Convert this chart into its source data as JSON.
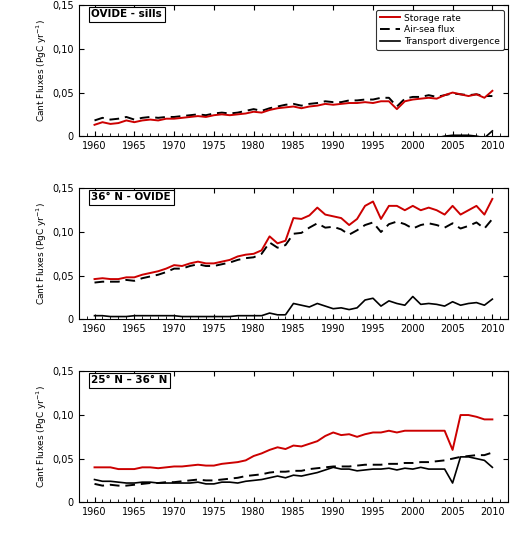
{
  "years": [
    1960,
    1961,
    1962,
    1963,
    1964,
    1965,
    1966,
    1967,
    1968,
    1969,
    1970,
    1971,
    1972,
    1973,
    1974,
    1975,
    1976,
    1977,
    1978,
    1979,
    1980,
    1981,
    1982,
    1983,
    1984,
    1985,
    1986,
    1987,
    1988,
    1989,
    1990,
    1991,
    1992,
    1993,
    1994,
    1995,
    1996,
    1997,
    1998,
    1999,
    2000,
    2001,
    2002,
    2003,
    2004,
    2005,
    2006,
    2007,
    2008,
    2009,
    2010
  ],
  "panel_a_storage": [
    0.013,
    0.016,
    0.014,
    0.015,
    0.018,
    0.016,
    0.018,
    0.019,
    0.018,
    0.02,
    0.02,
    0.021,
    0.022,
    0.023,
    0.022,
    0.024,
    0.025,
    0.024,
    0.025,
    0.026,
    0.028,
    0.027,
    0.03,
    0.032,
    0.033,
    0.034,
    0.032,
    0.034,
    0.035,
    0.037,
    0.036,
    0.037,
    0.038,
    0.038,
    0.039,
    0.038,
    0.04,
    0.04,
    0.031,
    0.04,
    0.042,
    0.043,
    0.044,
    0.043,
    0.047,
    0.05,
    0.048,
    0.046,
    0.048,
    0.044,
    0.052
  ],
  "panel_a_airsea": [
    0.018,
    0.021,
    0.019,
    0.02,
    0.022,
    0.019,
    0.021,
    0.022,
    0.021,
    0.022,
    0.022,
    0.023,
    0.024,
    0.025,
    0.024,
    0.026,
    0.027,
    0.026,
    0.027,
    0.029,
    0.031,
    0.029,
    0.032,
    0.034,
    0.036,
    0.037,
    0.035,
    0.037,
    0.038,
    0.04,
    0.039,
    0.039,
    0.041,
    0.041,
    0.042,
    0.042,
    0.044,
    0.044,
    0.034,
    0.043,
    0.045,
    0.045,
    0.047,
    0.045,
    0.047,
    0.049,
    0.048,
    0.047,
    0.048,
    0.046,
    0.046
  ],
  "panel_a_transport": [
    -0.005,
    -0.005,
    -0.005,
    -0.004,
    -0.004,
    -0.003,
    -0.003,
    -0.003,
    -0.003,
    -0.002,
    -0.002,
    -0.002,
    -0.002,
    -0.002,
    -0.002,
    -0.002,
    -0.002,
    -0.002,
    -0.002,
    -0.003,
    -0.003,
    -0.002,
    -0.002,
    -0.002,
    -0.003,
    -0.003,
    -0.003,
    -0.003,
    -0.003,
    -0.003,
    -0.003,
    -0.002,
    -0.003,
    -0.003,
    -0.003,
    -0.004,
    -0.004,
    -0.004,
    -0.003,
    -0.003,
    -0.003,
    -0.002,
    -0.003,
    -0.002,
    -0.0,
    0.001,
    0.001,
    0.001,
    -0.0,
    -0.002,
    0.006
  ],
  "panel_b_storage": [
    0.046,
    0.047,
    0.046,
    0.046,
    0.048,
    0.048,
    0.051,
    0.053,
    0.055,
    0.058,
    0.062,
    0.061,
    0.064,
    0.066,
    0.064,
    0.064,
    0.066,
    0.068,
    0.072,
    0.074,
    0.075,
    0.079,
    0.095,
    0.087,
    0.09,
    0.116,
    0.115,
    0.119,
    0.128,
    0.12,
    0.118,
    0.116,
    0.108,
    0.115,
    0.13,
    0.135,
    0.115,
    0.13,
    0.13,
    0.125,
    0.13,
    0.125,
    0.128,
    0.125,
    0.12,
    0.13,
    0.12,
    0.125,
    0.13,
    0.12,
    0.138
  ],
  "panel_b_airsea": [
    0.042,
    0.043,
    0.043,
    0.043,
    0.045,
    0.044,
    0.047,
    0.049,
    0.051,
    0.054,
    0.058,
    0.058,
    0.061,
    0.063,
    0.061,
    0.061,
    0.063,
    0.065,
    0.068,
    0.07,
    0.071,
    0.075,
    0.088,
    0.082,
    0.085,
    0.098,
    0.099,
    0.105,
    0.11,
    0.105,
    0.106,
    0.103,
    0.097,
    0.102,
    0.108,
    0.111,
    0.1,
    0.109,
    0.112,
    0.109,
    0.104,
    0.108,
    0.11,
    0.108,
    0.105,
    0.11,
    0.104,
    0.107,
    0.111,
    0.104,
    0.115
  ],
  "panel_b_transport": [
    0.004,
    0.004,
    0.003,
    0.003,
    0.003,
    0.004,
    0.004,
    0.004,
    0.004,
    0.004,
    0.004,
    0.003,
    0.003,
    0.003,
    0.003,
    0.003,
    0.003,
    0.003,
    0.004,
    0.004,
    0.004,
    0.004,
    0.007,
    0.005,
    0.005,
    0.018,
    0.016,
    0.014,
    0.018,
    0.015,
    0.012,
    0.013,
    0.011,
    0.013,
    0.022,
    0.024,
    0.015,
    0.021,
    0.018,
    0.016,
    0.026,
    0.017,
    0.018,
    0.017,
    0.015,
    0.02,
    0.016,
    0.018,
    0.019,
    0.016,
    0.023
  ],
  "panel_c_storage": [
    0.04,
    0.04,
    0.04,
    0.038,
    0.038,
    0.038,
    0.04,
    0.04,
    0.039,
    0.04,
    0.041,
    0.041,
    0.042,
    0.043,
    0.042,
    0.042,
    0.044,
    0.045,
    0.046,
    0.048,
    0.053,
    0.056,
    0.06,
    0.063,
    0.061,
    0.065,
    0.064,
    0.067,
    0.07,
    0.076,
    0.08,
    0.077,
    0.078,
    0.075,
    0.078,
    0.08,
    0.08,
    0.082,
    0.08,
    0.082,
    0.082,
    0.082,
    0.082,
    0.082,
    0.082,
    0.06,
    0.1,
    0.1,
    0.098,
    0.095,
    0.095
  ],
  "panel_c_airsea": [
    0.021,
    0.019,
    0.02,
    0.019,
    0.019,
    0.02,
    0.021,
    0.022,
    0.022,
    0.023,
    0.023,
    0.024,
    0.025,
    0.026,
    0.025,
    0.025,
    0.026,
    0.027,
    0.028,
    0.03,
    0.031,
    0.032,
    0.034,
    0.035,
    0.035,
    0.036,
    0.036,
    0.038,
    0.039,
    0.04,
    0.041,
    0.041,
    0.041,
    0.042,
    0.043,
    0.043,
    0.043,
    0.044,
    0.044,
    0.045,
    0.045,
    0.046,
    0.046,
    0.047,
    0.048,
    0.05,
    0.052,
    0.053,
    0.054,
    0.054,
    0.057
  ],
  "panel_c_transport": [
    0.026,
    0.024,
    0.024,
    0.023,
    0.022,
    0.022,
    0.023,
    0.023,
    0.022,
    0.022,
    0.022,
    0.022,
    0.022,
    0.023,
    0.021,
    0.021,
    0.023,
    0.023,
    0.022,
    0.024,
    0.025,
    0.026,
    0.028,
    0.03,
    0.028,
    0.031,
    0.03,
    0.032,
    0.034,
    0.037,
    0.04,
    0.038,
    0.038,
    0.036,
    0.037,
    0.038,
    0.038,
    0.039,
    0.037,
    0.039,
    0.038,
    0.04,
    0.038,
    0.038,
    0.038,
    0.022,
    0.052,
    0.052,
    0.05,
    0.048,
    0.04
  ],
  "storage_color": "#cc0000",
  "airsea_color": "#000000",
  "transport_color": "#000000",
  "ylim": [
    0,
    0.15
  ],
  "yticks": [
    0,
    0.05,
    0.1,
    0.15
  ],
  "xlim": [
    1958,
    2012
  ],
  "xticks": [
    1960,
    1965,
    1970,
    1975,
    1980,
    1985,
    1990,
    1995,
    2000,
    2005,
    2010
  ],
  "label_a": "OVIDE - sills",
  "label_b": "36° N - OVIDE",
  "label_c": "25° N – 36° N",
  "legend_storage": "Storage rate",
  "legend_airsea": "Air-sea flux",
  "legend_transport": "Transport divergence",
  "ylabel": "Cant Fluxes (PgC yr⁻¹)"
}
